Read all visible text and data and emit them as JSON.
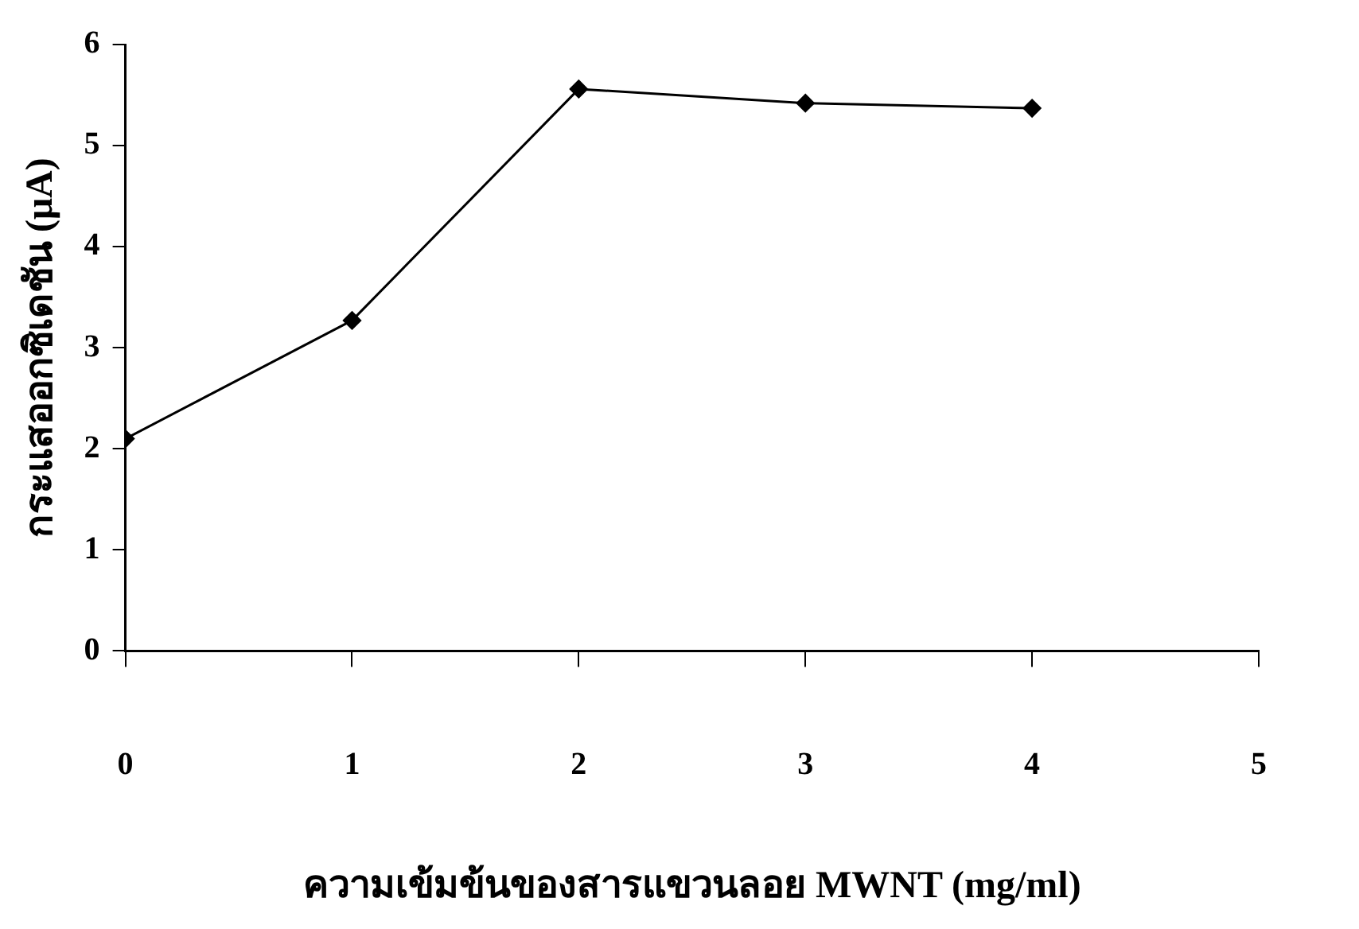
{
  "chart_data": {
    "type": "line",
    "xlabel": "ความเข้มข้นของสารแขวนลอย MWNT (mg/ml)",
    "ylabel": "กระแสออกซิเดชัน (μA)",
    "x": [
      0,
      1,
      2,
      3,
      4
    ],
    "series": [
      {
        "color": "#000000",
        "values": [
          2.1,
          3.27,
          5.56,
          5.42,
          5.37
        ]
      }
    ],
    "xlim": [
      0,
      5
    ],
    "xticks": [
      0,
      1,
      2,
      3,
      4,
      5
    ],
    "ylim": [
      0,
      6
    ],
    "yticks": [
      0,
      1,
      2,
      3,
      4,
      5,
      6
    ],
    "grid": false,
    "legend": false,
    "marker": "diamond",
    "line_style": "solid"
  }
}
